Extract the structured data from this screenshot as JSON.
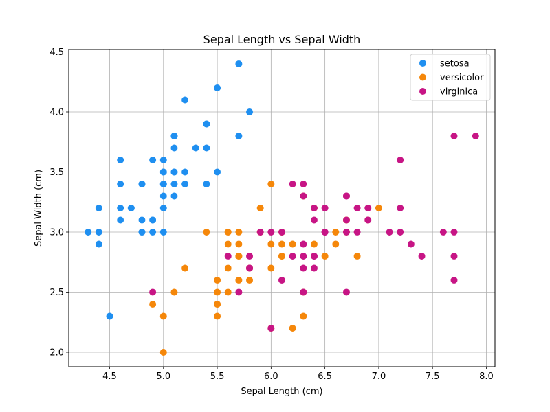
{
  "chart_data": {
    "type": "scatter",
    "title": "Sepal Length vs Sepal Width",
    "xlabel": "Sepal Length (cm)",
    "ylabel": "Sepal Width (cm)",
    "xlim": [
      4.12,
      8.08
    ],
    "ylim": [
      1.88,
      4.52
    ],
    "xticks": [
      "4.5",
      "5.0",
      "5.5",
      "6.0",
      "6.5",
      "7.0",
      "7.5",
      "8.0"
    ],
    "yticks": [
      "2.0",
      "2.5",
      "3.0",
      "3.5",
      "4.0",
      "4.5"
    ],
    "grid": true,
    "legend_position": "top-right",
    "series": [
      {
        "name": "setosa",
        "color": "#1f8ff0",
        "points": [
          [
            5.1,
            3.5
          ],
          [
            4.9,
            3.0
          ],
          [
            4.7,
            3.2
          ],
          [
            4.6,
            3.1
          ],
          [
            5.0,
            3.6
          ],
          [
            5.4,
            3.9
          ],
          [
            4.6,
            3.4
          ],
          [
            5.0,
            3.4
          ],
          [
            4.4,
            2.9
          ],
          [
            4.9,
            3.1
          ],
          [
            5.4,
            3.7
          ],
          [
            4.8,
            3.4
          ],
          [
            4.8,
            3.0
          ],
          [
            4.3,
            3.0
          ],
          [
            5.8,
            4.0
          ],
          [
            5.7,
            4.4
          ],
          [
            5.4,
            3.9
          ],
          [
            5.1,
            3.5
          ],
          [
            5.7,
            3.8
          ],
          [
            5.1,
            3.8
          ],
          [
            5.4,
            3.4
          ],
          [
            5.1,
            3.7
          ],
          [
            4.6,
            3.6
          ],
          [
            5.1,
            3.3
          ],
          [
            4.8,
            3.4
          ],
          [
            5.0,
            3.0
          ],
          [
            5.0,
            3.4
          ],
          [
            5.2,
            3.5
          ],
          [
            5.2,
            3.4
          ],
          [
            4.7,
            3.2
          ],
          [
            4.8,
            3.1
          ],
          [
            5.4,
            3.4
          ],
          [
            5.2,
            4.1
          ],
          [
            5.5,
            4.2
          ],
          [
            4.9,
            3.1
          ],
          [
            5.0,
            3.2
          ],
          [
            5.5,
            3.5
          ],
          [
            4.9,
            3.6
          ],
          [
            4.4,
            3.0
          ],
          [
            5.1,
            3.4
          ],
          [
            5.0,
            3.5
          ],
          [
            4.5,
            2.3
          ],
          [
            4.4,
            3.2
          ],
          [
            5.0,
            3.5
          ],
          [
            5.1,
            3.8
          ],
          [
            4.8,
            3.0
          ],
          [
            5.1,
            3.8
          ],
          [
            4.6,
            3.2
          ],
          [
            5.3,
            3.7
          ],
          [
            5.0,
            3.3
          ]
        ]
      },
      {
        "name": "versicolor",
        "color": "#f5870a",
        "points": [
          [
            7.0,
            3.2
          ],
          [
            6.4,
            3.2
          ],
          [
            6.9,
            3.1
          ],
          [
            5.5,
            2.3
          ],
          [
            6.5,
            2.8
          ],
          [
            5.7,
            2.8
          ],
          [
            6.3,
            3.3
          ],
          [
            4.9,
            2.4
          ],
          [
            6.6,
            2.9
          ],
          [
            5.2,
            2.7
          ],
          [
            5.0,
            2.0
          ],
          [
            5.9,
            3.0
          ],
          [
            6.0,
            2.2
          ],
          [
            6.1,
            2.9
          ],
          [
            5.6,
            2.9
          ],
          [
            6.7,
            3.1
          ],
          [
            5.6,
            3.0
          ],
          [
            5.8,
            2.7
          ],
          [
            6.2,
            2.2
          ],
          [
            5.6,
            2.5
          ],
          [
            5.9,
            3.2
          ],
          [
            6.1,
            2.8
          ],
          [
            6.3,
            2.5
          ],
          [
            6.1,
            2.8
          ],
          [
            6.4,
            2.9
          ],
          [
            6.6,
            3.0
          ],
          [
            6.8,
            2.8
          ],
          [
            6.7,
            3.0
          ],
          [
            6.0,
            2.9
          ],
          [
            5.7,
            2.6
          ],
          [
            5.5,
            2.4
          ],
          [
            5.5,
            2.4
          ],
          [
            5.8,
            2.7
          ],
          [
            6.0,
            2.7
          ],
          [
            5.4,
            3.0
          ],
          [
            6.0,
            3.4
          ],
          [
            6.7,
            3.1
          ],
          [
            6.3,
            2.3
          ],
          [
            5.6,
            3.0
          ],
          [
            5.5,
            2.5
          ],
          [
            5.5,
            2.6
          ],
          [
            6.1,
            3.0
          ],
          [
            5.8,
            2.6
          ],
          [
            5.0,
            2.3
          ],
          [
            5.6,
            2.7
          ],
          [
            5.7,
            3.0
          ],
          [
            5.7,
            2.9
          ],
          [
            6.2,
            2.9
          ],
          [
            5.1,
            2.5
          ],
          [
            5.7,
            2.8
          ]
        ]
      },
      {
        "name": "virginica",
        "color": "#c71585",
        "points": [
          [
            6.3,
            3.3
          ],
          [
            5.8,
            2.7
          ],
          [
            7.1,
            3.0
          ],
          [
            6.3,
            2.9
          ],
          [
            6.5,
            3.0
          ],
          [
            7.6,
            3.0
          ],
          [
            4.9,
            2.5
          ],
          [
            7.3,
            2.9
          ],
          [
            6.7,
            2.5
          ],
          [
            7.2,
            3.6
          ],
          [
            6.5,
            3.2
          ],
          [
            6.4,
            2.7
          ],
          [
            6.8,
            3.0
          ],
          [
            5.7,
            2.5
          ],
          [
            5.8,
            2.8
          ],
          [
            6.4,
            3.2
          ],
          [
            6.5,
            3.0
          ],
          [
            7.7,
            3.8
          ],
          [
            7.7,
            2.6
          ],
          [
            6.0,
            2.2
          ],
          [
            6.9,
            3.2
          ],
          [
            5.6,
            2.8
          ],
          [
            7.7,
            2.8
          ],
          [
            6.3,
            2.7
          ],
          [
            6.7,
            3.3
          ],
          [
            7.2,
            3.2
          ],
          [
            6.2,
            2.8
          ],
          [
            6.1,
            3.0
          ],
          [
            6.4,
            2.8
          ],
          [
            7.2,
            3.0
          ],
          [
            7.4,
            2.8
          ],
          [
            7.9,
            3.8
          ],
          [
            6.4,
            2.8
          ],
          [
            6.3,
            2.8
          ],
          [
            6.1,
            2.6
          ],
          [
            7.7,
            3.0
          ],
          [
            6.3,
            3.4
          ],
          [
            6.4,
            3.1
          ],
          [
            6.0,
            3.0
          ],
          [
            6.9,
            3.1
          ],
          [
            6.7,
            3.1
          ],
          [
            6.9,
            3.1
          ],
          [
            5.8,
            2.7
          ],
          [
            6.8,
            3.2
          ],
          [
            6.7,
            3.3
          ],
          [
            6.7,
            3.0
          ],
          [
            6.3,
            2.5
          ],
          [
            6.5,
            3.0
          ],
          [
            6.2,
            3.4
          ],
          [
            5.9,
            3.0
          ]
        ]
      }
    ]
  }
}
